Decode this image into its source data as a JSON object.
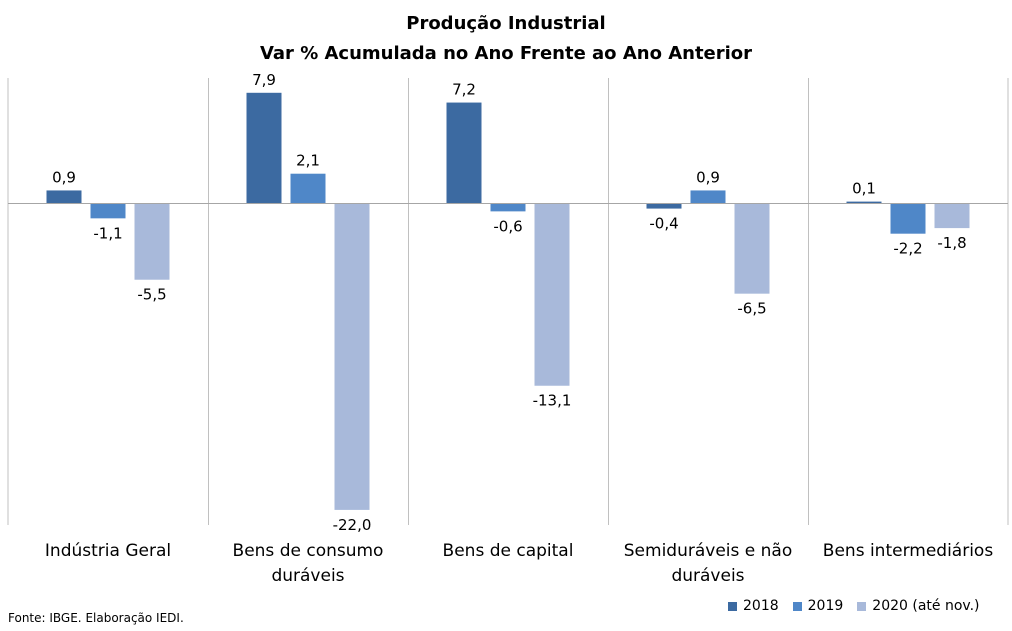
{
  "chart_data": {
    "type": "bar",
    "title": "Produção Industrial",
    "subtitle": "Var % Acumulada no Ano Frente ao Ano Anterior",
    "categories": [
      [
        "Indústria Geral"
      ],
      [
        "Bens de consumo",
        "duráveis"
      ],
      [
        "Bens de capital"
      ],
      [
        "Semiduráveis e não",
        "duráveis"
      ],
      [
        "Bens intermediários"
      ]
    ],
    "series": [
      {
        "name": "2018",
        "color": "#3c6aa1",
        "values": [
          0.9,
          7.9,
          7.2,
          -0.4,
          0.1
        ],
        "labels": [
          "0,9",
          "7,9",
          "7,2",
          "-0,4",
          "0,1"
        ]
      },
      {
        "name": "2019",
        "color": "#4f87c8",
        "values": [
          -1.1,
          2.1,
          -0.6,
          0.9,
          -2.2
        ],
        "labels": [
          "-1,1",
          "2,1",
          "-0,6",
          "0,9",
          "-2,2"
        ]
      },
      {
        "name": "2020 (até nov.)",
        "color": "#a8b9da",
        "values": [
          -5.5,
          -22.0,
          -13.1,
          -6.5,
          -1.8
        ],
        "labels": [
          "-5,5",
          "-22,0",
          "-13,1",
          "-6,5",
          "-1,8"
        ]
      }
    ],
    "ylim": [
      -23,
      9
    ],
    "legend_position": "bottom-right",
    "grid": false
  },
  "source": "Fonte: IBGE. Elaboração IEDI."
}
